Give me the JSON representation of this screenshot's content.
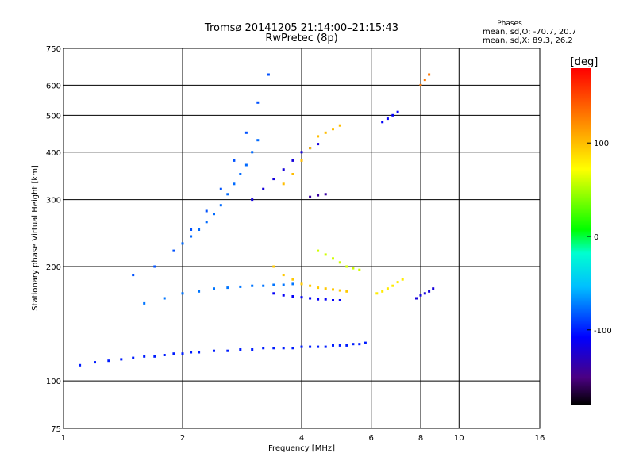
{
  "chart_data": {
    "type": "scatter",
    "title": "Tromsø 20141205 21:14:00–21:15:43",
    "subtitle": "RwPretec (8p)",
    "xlabel": "Frequency [MHz]",
    "ylabel": "Stationary phase Virtual Height [km]",
    "x_scale": "log",
    "y_scale": "log",
    "xlim": [
      1,
      16
    ],
    "ylim": [
      75,
      750
    ],
    "x_ticks": [
      "1",
      "2",
      "4",
      "6",
      "8",
      "10",
      "16"
    ],
    "x_tick_values": [
      1,
      2,
      4,
      6,
      8,
      10,
      16
    ],
    "y_ticks": [
      "75",
      "100",
      "200",
      "300",
      "400",
      "500",
      "600",
      "750"
    ],
    "y_tick_values": [
      75,
      100,
      200,
      300,
      400,
      500,
      600,
      750
    ],
    "grid": true,
    "colorbar": {
      "label": "[deg]",
      "range": [
        -180,
        180
      ],
      "ticks": [
        "100",
        "0",
        "-100"
      ],
      "tick_values": [
        100,
        0,
        -100
      ]
    },
    "stats": {
      "title": "Phases",
      "line1": "mean, sd,O: -70.7, 20.7",
      "line2": "mean, sd,X:  89.3, 26.2"
    },
    "series": [
      {
        "x": [
          1.1,
          1.2,
          1.3,
          1.4,
          1.5,
          1.6,
          1.7,
          1.8,
          1.9,
          2.0,
          2.1,
          2.2,
          2.4,
          2.6,
          2.8,
          3.0,
          3.2,
          3.4,
          3.6,
          3.8,
          4.0,
          4.2,
          4.4,
          4.6,
          4.8,
          5.0,
          5.2,
          5.4,
          5.6,
          5.8
        ],
        "y": [
          110,
          112,
          113,
          114,
          115,
          116,
          116,
          117,
          118,
          118,
          119,
          119,
          120,
          120,
          121,
          121,
          122,
          122,
          122,
          122,
          123,
          123,
          123,
          123,
          124,
          124,
          124,
          125,
          125,
          126
        ],
        "phase": -100
      },
      {
        "x": [
          1.5,
          1.7,
          1.9,
          2.1,
          2.3,
          2.5,
          2.7,
          2.9,
          3.1,
          3.3
        ],
        "y": [
          190,
          200,
          220,
          250,
          280,
          320,
          380,
          450,
          540,
          640
        ],
        "phase": -85
      },
      {
        "x": [
          1.6,
          1.8,
          2.0,
          2.2,
          2.4,
          2.6,
          2.8,
          3.0,
          3.2,
          3.4,
          3.6,
          3.8
        ],
        "y": [
          160,
          165,
          170,
          172,
          175,
          176,
          177,
          178,
          178,
          179,
          179,
          180
        ],
        "phase": -75
      },
      {
        "x": [
          3.4,
          3.6,
          3.8,
          4.0,
          4.2,
          4.4,
          4.6,
          4.8,
          5.0
        ],
        "y": [
          170,
          168,
          167,
          166,
          165,
          164,
          164,
          163,
          163
        ],
        "phase": -110
      },
      {
        "x": [
          3.0,
          3.2,
          3.4,
          3.6,
          3.8,
          4.0,
          4.2,
          4.4
        ],
        "y": [
          300,
          320,
          340,
          360,
          380,
          400,
          410,
          420
        ],
        "phase": -120
      },
      {
        "x": [
          3.6,
          3.8,
          4.0,
          4.2,
          4.4,
          4.6,
          4.8,
          5.0
        ],
        "y": [
          330,
          350,
          380,
          410,
          440,
          450,
          460,
          470
        ],
        "phase": 100
      },
      {
        "x": [
          3.4,
          3.6,
          3.8,
          4.0,
          4.2,
          4.4,
          4.6,
          4.8,
          5.0,
          5.2
        ],
        "y": [
          200,
          190,
          185,
          180,
          178,
          176,
          175,
          174,
          173,
          172
        ],
        "phase": 95
      },
      {
        "x": [
          4.4,
          4.6,
          4.8,
          5.0,
          5.2,
          5.4,
          5.6
        ],
        "y": [
          220,
          215,
          210,
          205,
          200,
          198,
          196
        ],
        "phase": 60
      },
      {
        "x": [
          6.2,
          6.4,
          6.6,
          6.8,
          7.0,
          7.2
        ],
        "y": [
          170,
          172,
          175,
          178,
          182,
          185
        ],
        "phase": 80
      },
      {
        "x": [
          7.8,
          8.0,
          8.2,
          8.4,
          8.6
        ],
        "y": [
          165,
          168,
          170,
          172,
          175
        ],
        "phase": -120
      },
      {
        "x": [
          6.4,
          6.6,
          6.8,
          7.0
        ],
        "y": [
          480,
          490,
          500,
          510
        ],
        "phase": -110
      },
      {
        "x": [
          8.0,
          8.2,
          8.4
        ],
        "y": [
          600,
          620,
          640
        ],
        "phase": 130
      },
      {
        "x": [
          4.2,
          4.4,
          4.6
        ],
        "y": [
          305,
          308,
          310
        ],
        "phase": -140
      },
      {
        "x": [
          2.0,
          2.1,
          2.2,
          2.3,
          2.4,
          2.5,
          2.6,
          2.7,
          2.8,
          2.9,
          3.0,
          3.1
        ],
        "y": [
          230,
          240,
          250,
          262,
          275,
          290,
          310,
          330,
          350,
          370,
          400,
          430
        ],
        "phase": -78
      }
    ]
  }
}
